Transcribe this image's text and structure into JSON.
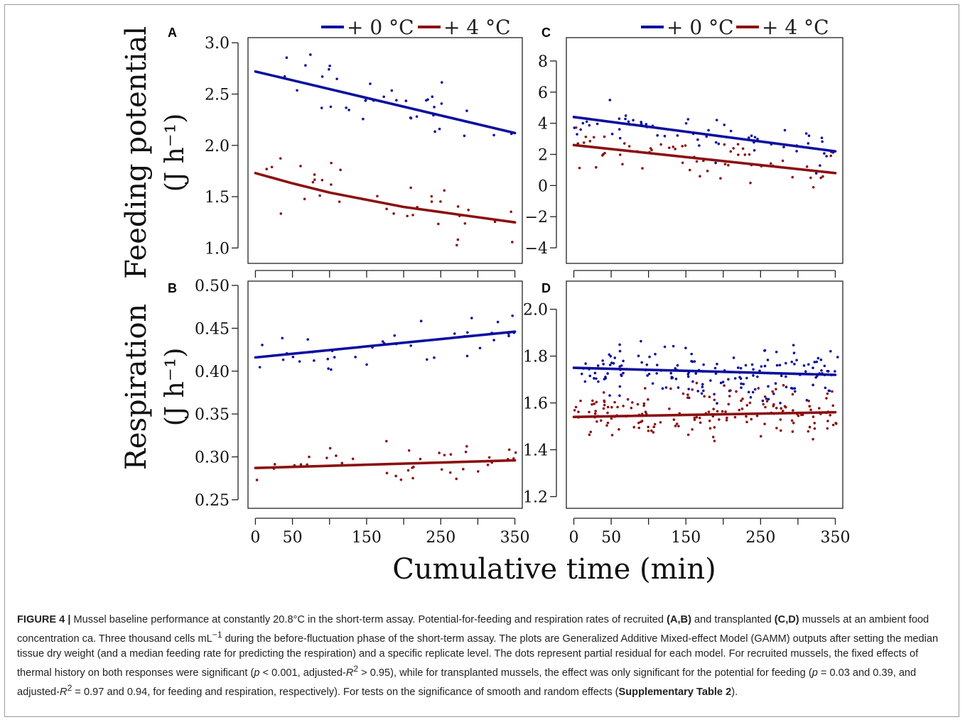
{
  "legend": {
    "items": [
      {
        "label": "+ 0 °C",
        "color": "#0b0f9e"
      },
      {
        "label": "+ 4 °C",
        "color": "#8b1010"
      }
    ]
  },
  "axes": {
    "y_top_label_line1": "Feeding potential",
    "y_top_label_line2": "(J h⁻¹)",
    "y_bottom_label_line1": "Respiration",
    "y_bottom_label_line2": "(J h⁻¹)",
    "x_label": "Cumulative time (min)"
  },
  "caption": {
    "figure_label": "FIGURE 4 |",
    "text_1": " Mussel baseline performance at constantly 20.8°C in the short-term assay. Potential-for-feeding and respiration rates of recruited ",
    "bold_ab": "(A,B)",
    "text_2": " and transplanted ",
    "bold_cd": "(C,D)",
    "text_3": " mussels at an ambient food concentration ca. Three thousand cells mL",
    "sup_minus1": "−1",
    "text_4": " during the before-fluctuation phase of the short-term assay. The plots are Generalized Additive Mixed-effect Model (GAMM) outputs after setting the median tissue dry weight (and a median feeding rate for predicting the respiration) and a specific replicate level. The dots represent partial residual for each model. For recruited mussels, the fixed effects of thermal history on both responses were significant (",
    "p_var": "p",
    "text_5": " < 0.001, adjusted-",
    "r_var": "R",
    "sup_2": "2",
    "text_6": " > 0.95), while for transplanted mussels, the effect was only significant for the potential for feeding (",
    "text_7": " = 0.03 and 0.39, and adjusted-",
    "text_8": " = 0.97 and 0.94, for feeding and respiration, respectively). For tests on the significance of smooth and random effects (",
    "bold_supp": "Supplementary Table 2",
    "text_9": ")."
  },
  "chart_data": [
    {
      "panel": "A",
      "type": "line",
      "x_ticks": [
        0,
        50,
        150,
        250,
        350
      ],
      "y_ticks": [
        "1.0",
        "1.5",
        "2.0",
        "2.5",
        "3.0"
      ],
      "xlim": [
        -10,
        360
      ],
      "ylim": [
        0.85,
        3.05
      ],
      "series": [
        {
          "name": "+ 0 °C",
          "x": [
            0,
            350
          ],
          "y": [
            2.72,
            2.12
          ]
        },
        {
          "name": "+ 4 °C",
          "x": [
            0,
            50,
            100,
            150,
            200,
            250,
            300,
            350
          ],
          "y": [
            1.73,
            1.63,
            1.54,
            1.47,
            1.4,
            1.35,
            1.3,
            1.25
          ]
        }
      ]
    },
    {
      "panel": "B",
      "type": "line",
      "x_ticks": [
        0,
        50,
        150,
        250,
        350
      ],
      "y_ticks": [
        "0.25",
        "0.30",
        "0.35",
        "0.40",
        "0.45",
        "0.50"
      ],
      "xlim": [
        -10,
        360
      ],
      "ylim": [
        0.24,
        0.505
      ],
      "series": [
        {
          "name": "+ 0 °C",
          "x": [
            0,
            350
          ],
          "y": [
            0.416,
            0.446
          ]
        },
        {
          "name": "+ 4 °C",
          "x": [
            0,
            350
          ],
          "y": [
            0.287,
            0.296
          ]
        }
      ]
    },
    {
      "panel": "C",
      "type": "line",
      "x_ticks": [
        0,
        50,
        150,
        250,
        350
      ],
      "y_ticks": [
        "−4",
        "−2",
        "0",
        "2",
        "4",
        "6",
        "8"
      ],
      "xlim": [
        -10,
        360
      ],
      "ylim": [
        -5,
        9.5
      ],
      "series": [
        {
          "name": "+ 0 °C",
          "x": [
            0,
            350
          ],
          "y": [
            4.4,
            2.2
          ]
        },
        {
          "name": "+ 4 °C",
          "x": [
            0,
            350
          ],
          "y": [
            2.6,
            0.8
          ]
        }
      ]
    },
    {
      "panel": "D",
      "type": "line",
      "x_ticks": [
        0,
        50,
        150,
        250,
        350
      ],
      "y_ticks": [
        "1.2",
        "1.4",
        "1.6",
        "1.8",
        "2.0"
      ],
      "xlim": [
        -10,
        360
      ],
      "ylim": [
        1.15,
        2.12
      ],
      "series": [
        {
          "name": "+ 0 °C",
          "x": [
            0,
            350
          ],
          "y": [
            1.75,
            1.72
          ]
        },
        {
          "name": "+ 4 °C",
          "x": [
            0,
            350
          ],
          "y": [
            1.54,
            1.56
          ]
        }
      ]
    }
  ]
}
